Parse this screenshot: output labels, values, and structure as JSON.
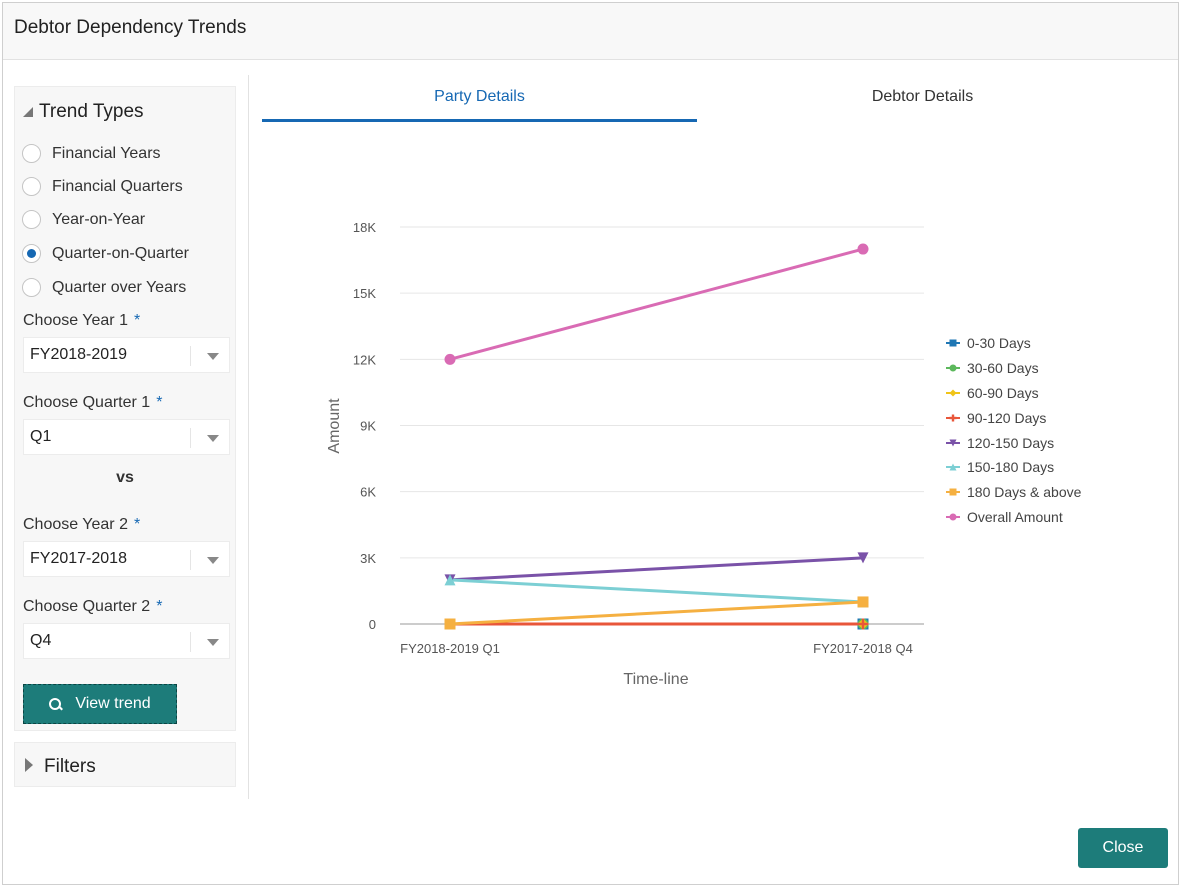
{
  "dialog": {
    "title": "Debtor Dependency Trends"
  },
  "trend_types": {
    "heading": "Trend Types",
    "options": [
      {
        "label": "Financial Years",
        "checked": false
      },
      {
        "label": "Financial Quarters",
        "checked": false
      },
      {
        "label": "Year-on-Year",
        "checked": false
      },
      {
        "label": "Quarter-on-Quarter",
        "checked": true
      },
      {
        "label": "Quarter over Years",
        "checked": false
      }
    ]
  },
  "form": {
    "year1": {
      "label": "Choose Year 1",
      "value": "FY2018-2019"
    },
    "quarter1": {
      "label": "Choose Quarter 1",
      "value": "Q1"
    },
    "vs": "vs",
    "year2": {
      "label": "Choose Year 2",
      "value": "FY2017-2018"
    },
    "quarter2": {
      "label": "Choose Quarter 2",
      "value": "Q4"
    },
    "required_mark": "*"
  },
  "buttons": {
    "view_trend": "View trend",
    "close": "Close"
  },
  "filters": {
    "label": "Filters"
  },
  "tabs": [
    {
      "label": "Party Details",
      "active": true
    },
    {
      "label": "Debtor Details",
      "active": false
    }
  ],
  "colors": {
    "accent": "#1668b3",
    "button": "#1d7c7a"
  },
  "chart_data": {
    "type": "line",
    "x": [
      "FY2018-2019 Q1",
      "FY2017-2018 Q4"
    ],
    "xlabel": "Time-line",
    "ylabel": "Amount",
    "ylim": [
      0,
      18000
    ],
    "yticks": [
      0,
      3000,
      6000,
      9000,
      12000,
      15000,
      18000
    ],
    "ytick_labels": [
      "0",
      "3K",
      "6K",
      "9K",
      "12K",
      "15K",
      "18K"
    ],
    "grid": true,
    "legend_position": "right",
    "series": [
      {
        "name": "0-30 Days",
        "color": "#1f77b4",
        "marker": "square",
        "values": [
          0,
          0
        ]
      },
      {
        "name": "30-60 Days",
        "color": "#5cb85c",
        "marker": "circle",
        "values": [
          0,
          0
        ]
      },
      {
        "name": "60-90 Days",
        "color": "#f0c419",
        "marker": "diamond",
        "values": [
          0,
          0
        ]
      },
      {
        "name": "90-120 Days",
        "color": "#e8563a",
        "marker": "plus",
        "values": [
          0,
          0
        ]
      },
      {
        "name": "120-150 Days",
        "color": "#7a52a8",
        "marker": "triangle-down",
        "values": [
          2000,
          3000
        ]
      },
      {
        "name": "150-180 Days",
        "color": "#7ccfd4",
        "marker": "triangle-up",
        "values": [
          2000,
          1000
        ]
      },
      {
        "name": "180 Days & above",
        "color": "#f5b041",
        "marker": "square",
        "values": [
          0,
          1000
        ]
      },
      {
        "name": "Overall Amount",
        "color": "#d96bb4",
        "marker": "circle",
        "values": [
          12000,
          17000
        ]
      }
    ]
  }
}
